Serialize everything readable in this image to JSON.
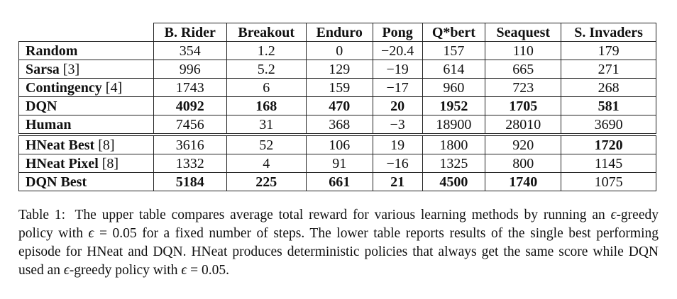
{
  "table": {
    "columns": [
      "B. Rider",
      "Breakout",
      "Enduro",
      "Pong",
      "Q*bert",
      "Seaquest",
      "S. Invaders"
    ],
    "upper_rows": [
      {
        "method": "Random",
        "ref": "",
        "values": [
          "354",
          "1.2",
          "0",
          "−20.4",
          "157",
          "110",
          "179"
        ],
        "bold": [
          false,
          false,
          false,
          false,
          false,
          false,
          false
        ]
      },
      {
        "method": "Sarsa",
        "ref": " [3]",
        "values": [
          "996",
          "5.2",
          "129",
          "−19",
          "614",
          "665",
          "271"
        ],
        "bold": [
          false,
          false,
          false,
          false,
          false,
          false,
          false
        ]
      },
      {
        "method": "Contingency",
        "ref": " [4]",
        "values": [
          "1743",
          "6",
          "159",
          "−17",
          "960",
          "723",
          "268"
        ],
        "bold": [
          false,
          false,
          false,
          false,
          false,
          false,
          false
        ]
      },
      {
        "method": "DQN",
        "ref": "",
        "values": [
          "4092",
          "168",
          "470",
          "20",
          "1952",
          "1705",
          "581"
        ],
        "bold": [
          true,
          true,
          true,
          true,
          true,
          true,
          true
        ]
      },
      {
        "method": "Human",
        "ref": "",
        "values": [
          "7456",
          "31",
          "368",
          "−3",
          "18900",
          "28010",
          "3690"
        ],
        "bold": [
          false,
          false,
          false,
          false,
          false,
          false,
          false
        ]
      }
    ],
    "lower_rows": [
      {
        "method": "HNeat Best",
        "ref": " [8]",
        "values": [
          "3616",
          "52",
          "106",
          "19",
          "1800",
          "920",
          "1720"
        ],
        "bold": [
          false,
          false,
          false,
          false,
          false,
          false,
          true
        ]
      },
      {
        "method": "HNeat Pixel",
        "ref": " [8]",
        "values": [
          "1332",
          "4",
          "91",
          "−16",
          "1325",
          "800",
          "1145"
        ],
        "bold": [
          false,
          false,
          false,
          false,
          false,
          false,
          false
        ]
      },
      {
        "method": "DQN Best",
        "ref": "",
        "values": [
          "5184",
          "225",
          "661",
          "21",
          "4500",
          "1740",
          "1075"
        ],
        "bold": [
          true,
          true,
          true,
          true,
          true,
          true,
          false
        ]
      }
    ]
  },
  "caption": {
    "label": "Table 1:",
    "epsilon": "ϵ",
    "equals_value": " = 0.05",
    "seg1": "The upper table compares average total reward for various learning methods by running an ",
    "seg2": "-greedy policy with ",
    "seg3": " for a fixed number of steps. The lower table reports results of the single best performing episode for HNeat and DQN. HNeat produces deterministic policies that always get the same score while DQN used an ",
    "seg4": "-greedy policy with ",
    "seg5": "."
  }
}
